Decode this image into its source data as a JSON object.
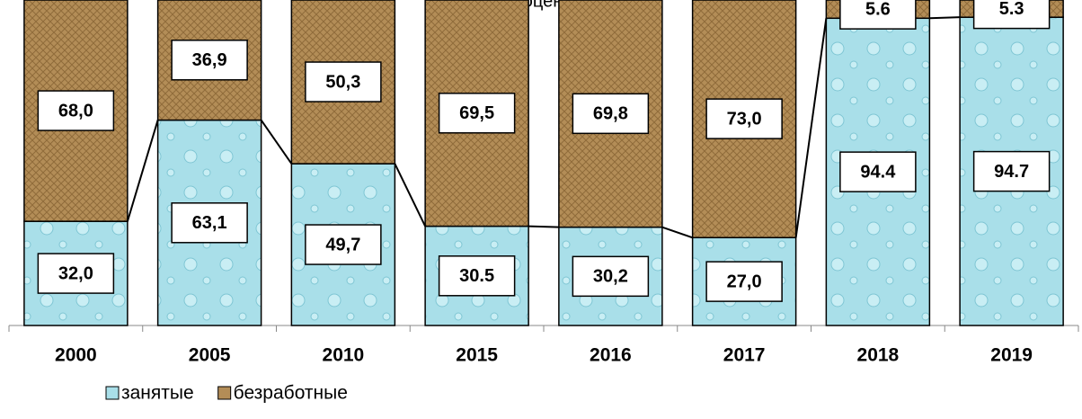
{
  "chart_data": {
    "type": "stacked_bar",
    "subtitle": "(в процентах)",
    "categories": [
      "2000",
      "2005",
      "2010",
      "2015",
      "2016",
      "2017",
      "2018",
      "2019"
    ],
    "series": [
      {
        "name": "занятые",
        "color": "#a9dfe9",
        "values": [
          32.0,
          63.1,
          49.7,
          30.5,
          30.2,
          27.0,
          94.4,
          94.7
        ],
        "value_labels": [
          "32,0",
          "63,1",
          "49,7",
          "30.5",
          "30,2",
          "27,0",
          "94.4",
          "94.7"
        ]
      },
      {
        "name": "безработные",
        "color": "#b38d57",
        "values": [
          68.0,
          36.9,
          50.3,
          69.5,
          69.8,
          73.0,
          5.6,
          5.3
        ],
        "value_labels": [
          "68,0",
          "36,9",
          "50,3",
          "69,5",
          "69,8",
          "73,0",
          "5.6",
          "5.3"
        ]
      }
    ],
    "ylim": [
      0,
      100
    ]
  }
}
